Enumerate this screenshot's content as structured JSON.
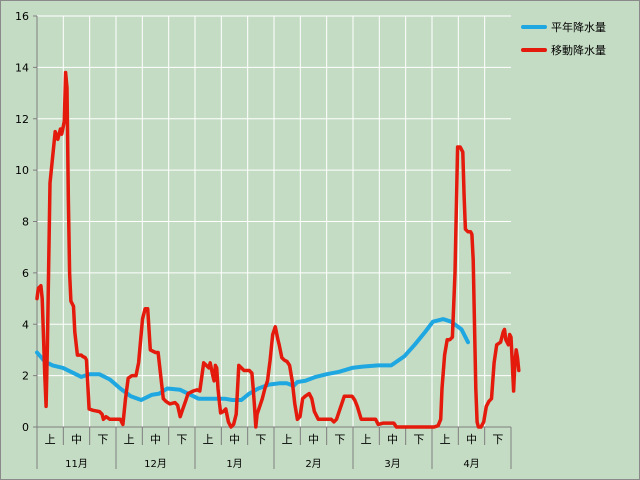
{
  "chart_data": {
    "type": "line",
    "title": "",
    "xlabel": "",
    "ylabel": "",
    "ylim": [
      0,
      16
    ],
    "yticks": [
      0,
      2,
      4,
      6,
      8,
      10,
      12,
      14,
      16
    ],
    "grid": true,
    "legend_position": "top-right",
    "months": [
      "11月",
      "12月",
      "1月",
      "2月",
      "3月",
      "4月"
    ],
    "decades": [
      "上",
      "中",
      "下"
    ],
    "x_unit": "day index from start of 11月 (0–181)",
    "series": [
      {
        "name": "平年降水量",
        "color": "#1ea7e1",
        "points": [
          [
            0,
            2.9
          ],
          [
            6,
            2.55
          ],
          [
            12,
            2.4
          ],
          [
            20,
            2.3
          ],
          [
            30,
            2.05
          ],
          [
            34,
            1.95
          ],
          [
            40,
            2.05
          ],
          [
            48,
            2.05
          ],
          [
            56,
            1.85
          ],
          [
            64,
            1.5
          ],
          [
            72,
            1.2
          ],
          [
            80,
            1.05
          ],
          [
            88,
            1.25
          ],
          [
            94,
            1.3
          ],
          [
            100,
            1.5
          ],
          [
            110,
            1.45
          ],
          [
            118,
            1.25
          ],
          [
            124,
            1.1
          ],
          [
            134,
            1.1
          ],
          [
            144,
            1.1
          ],
          [
            150,
            1.05
          ],
          [
            157,
            1.05
          ],
          [
            163,
            1.3
          ],
          [
            170,
            1.5
          ],
          [
            178,
            1.65
          ],
          [
            186,
            1.7
          ],
          [
            192,
            1.7
          ],
          [
            197,
            1.6
          ],
          [
            200,
            1.75
          ],
          [
            206,
            1.8
          ],
          [
            214,
            1.95
          ],
          [
            222,
            2.05
          ],
          [
            232,
            2.15
          ],
          [
            242,
            2.3
          ],
          [
            250,
            2.35
          ],
          [
            262,
            2.4
          ],
          [
            272,
            2.4
          ],
          [
            282,
            2.75
          ],
          [
            290,
            3.2
          ],
          [
            298,
            3.7
          ],
          [
            304,
            4.1
          ],
          [
            312,
            4.2
          ],
          [
            318,
            4.1
          ],
          [
            326,
            3.8
          ],
          [
            331,
            3.3
          ]
        ]
      },
      {
        "name": "移動降水量",
        "color": "#e31a0c",
        "points": [
          [
            0,
            5.0
          ],
          [
            1,
            5.4
          ],
          [
            3,
            5.5
          ],
          [
            4,
            5.0
          ],
          [
            6,
            2.0
          ],
          [
            7,
            0.8
          ],
          [
            8,
            3.2
          ],
          [
            10,
            9.5
          ],
          [
            12,
            10.5
          ],
          [
            14,
            11.5
          ],
          [
            16,
            11.2
          ],
          [
            18,
            11.6
          ],
          [
            19,
            11.4
          ],
          [
            21,
            11.9
          ],
          [
            22,
            13.8
          ],
          [
            23,
            13.2
          ],
          [
            24,
            9.0
          ],
          [
            25,
            6.0
          ],
          [
            26,
            4.9
          ],
          [
            28,
            4.7
          ],
          [
            29,
            3.7
          ],
          [
            31,
            2.8
          ],
          [
            34,
            2.8
          ],
          [
            35,
            2.75
          ],
          [
            37,
            2.7
          ],
          [
            38,
            2.6
          ],
          [
            40,
            0.7
          ],
          [
            43,
            0.65
          ],
          [
            48,
            0.6
          ],
          [
            50,
            0.5
          ],
          [
            51,
            0.3
          ],
          [
            53,
            0.4
          ],
          [
            56,
            0.3
          ],
          [
            60,
            0.3
          ],
          [
            64,
            0.3
          ],
          [
            66,
            0.1
          ],
          [
            68,
            1.1
          ],
          [
            70,
            1.9
          ],
          [
            73,
            2.0
          ],
          [
            76,
            2.0
          ],
          [
            78,
            2.5
          ],
          [
            81,
            4.2
          ],
          [
            83,
            4.6
          ],
          [
            85,
            4.6
          ],
          [
            87,
            3.0
          ],
          [
            91,
            2.9
          ],
          [
            93,
            2.9
          ],
          [
            95,
            2.0
          ],
          [
            97,
            1.1
          ],
          [
            99,
            1.0
          ],
          [
            102,
            0.9
          ],
          [
            106,
            0.95
          ],
          [
            108,
            0.85
          ],
          [
            110,
            0.4
          ],
          [
            112,
            0.7
          ],
          [
            114,
            1.0
          ],
          [
            116,
            1.3
          ],
          [
            120,
            1.4
          ],
          [
            123,
            1.45
          ],
          [
            125,
            1.4
          ],
          [
            128,
            2.5
          ],
          [
            130,
            2.4
          ],
          [
            132,
            2.3
          ],
          [
            133,
            2.5
          ],
          [
            135,
            2.0
          ],
          [
            136,
            1.8
          ],
          [
            137,
            2.4
          ],
          [
            138,
            2.3
          ],
          [
            139,
            1.5
          ],
          [
            140,
            1.0
          ],
          [
            141,
            0.55
          ],
          [
            143,
            0.6
          ],
          [
            145,
            0.7
          ],
          [
            147,
            0.2
          ],
          [
            149,
            0.0
          ],
          [
            151,
            0.1
          ],
          [
            153,
            0.5
          ],
          [
            155,
            2.4
          ],
          [
            157,
            2.3
          ],
          [
            159,
            2.2
          ],
          [
            163,
            2.2
          ],
          [
            165,
            2.1
          ],
          [
            166,
            1.5
          ],
          [
            167,
            0.8
          ],
          [
            168,
            0.0
          ],
          [
            169,
            0.5
          ],
          [
            173,
            1.1
          ],
          [
            175,
            1.5
          ],
          [
            177,
            1.8
          ],
          [
            179,
            2.6
          ],
          [
            181,
            3.6
          ],
          [
            183,
            3.9
          ],
          [
            185,
            3.4
          ],
          [
            186,
            3.2
          ],
          [
            188,
            2.7
          ],
          [
            190,
            2.6
          ],
          [
            192,
            2.55
          ],
          [
            194,
            2.4
          ],
          [
            196,
            1.8
          ],
          [
            198,
            0.9
          ],
          [
            200,
            0.3
          ],
          [
            202,
            0.4
          ],
          [
            204,
            1.1
          ],
          [
            206,
            1.2
          ],
          [
            209,
            1.3
          ],
          [
            211,
            1.1
          ],
          [
            213,
            0.6
          ],
          [
            216,
            0.3
          ],
          [
            220,
            0.3
          ],
          [
            226,
            0.3
          ],
          [
            228,
            0.2
          ],
          [
            230,
            0.3
          ],
          [
            232,
            0.6
          ],
          [
            234,
            0.9
          ],
          [
            236,
            1.2
          ],
          [
            242,
            1.2
          ],
          [
            244,
            1.05
          ],
          [
            246,
            0.8
          ],
          [
            249,
            0.3
          ],
          [
            256,
            0.3
          ],
          [
            260,
            0.3
          ],
          [
            262,
            0.1
          ],
          [
            266,
            0.15
          ],
          [
            270,
            0.15
          ],
          [
            274,
            0.15
          ],
          [
            276,
            0.0
          ],
          [
            281,
            0.0
          ],
          [
            285,
            0.0
          ],
          [
            294,
            0.0
          ],
          [
            300,
            0.0
          ],
          [
            305,
            0.0
          ],
          [
            308,
            0.05
          ],
          [
            310,
            0.3
          ],
          [
            311,
            1.5
          ],
          [
            313,
            2.8
          ],
          [
            315,
            3.4
          ],
          [
            317,
            3.4
          ],
          [
            319,
            3.5
          ],
          [
            321,
            6.0
          ],
          [
            323,
            10.9
          ],
          [
            325,
            10.9
          ],
          [
            327,
            10.7
          ],
          [
            328,
            9.0
          ],
          [
            329,
            7.7
          ],
          [
            331,
            7.6
          ],
          [
            333,
            7.6
          ],
          [
            334,
            7.5
          ],
          [
            335,
            6.5
          ],
          [
            336,
            4.0
          ],
          [
            337,
            1.5
          ],
          [
            338,
            0.2
          ],
          [
            339,
            0.0
          ],
          [
            341,
            0.0
          ],
          [
            343,
            0.2
          ],
          [
            345,
            0.8
          ],
          [
            347,
            1.0
          ],
          [
            349,
            1.1
          ],
          [
            351,
            2.5
          ],
          [
            353,
            3.2
          ],
          [
            356,
            3.3
          ],
          [
            358,
            3.7
          ],
          [
            359,
            3.8
          ],
          [
            360,
            3.4
          ],
          [
            362,
            3.2
          ],
          [
            363,
            3.6
          ],
          [
            364,
            3.5
          ],
          [
            365,
            2.5
          ],
          [
            366,
            1.4
          ],
          [
            367,
            2.5
          ],
          [
            368,
            3.0
          ],
          [
            369,
            2.7
          ],
          [
            370,
            2.2
          ]
        ]
      }
    ]
  }
}
